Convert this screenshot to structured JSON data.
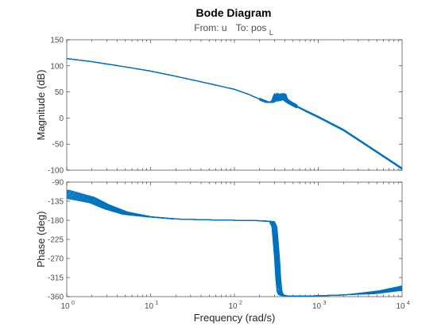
{
  "chart_data": {
    "type": "line",
    "title": "Bode Diagram",
    "subtitle": {
      "from": "From: u",
      "to_prefix": "To: pos",
      "to_subscript": "L"
    },
    "xlabel": "Frequency  (rad/s)",
    "xscale": "log",
    "xlim": [
      1,
      10000
    ],
    "x_tick_values": [
      1,
      10,
      100,
      1000,
      10000
    ],
    "x_tick_labels": [
      {
        "base": "10",
        "exp": "0"
      },
      {
        "base": "10",
        "exp": "1"
      },
      {
        "base": "10",
        "exp": "2"
      },
      {
        "base": "10",
        "exp": "3"
      },
      {
        "base": "10",
        "exp": "4"
      }
    ],
    "line_color": "#0072BD",
    "ensemble_count": 10,
    "panels": [
      {
        "id": "magnitude",
        "ylabel": "Magnitude (dB)",
        "ylim": [
          -100,
          150
        ],
        "y_ticks": [
          -100,
          -50,
          0,
          50,
          100,
          150
        ],
        "x": [
          1,
          2,
          5,
          10,
          20,
          50,
          100,
          150,
          200,
          250,
          280,
          300,
          320,
          340,
          360,
          380,
          400,
          450,
          500,
          700,
          1000,
          2000,
          5000,
          10000
        ],
        "y": [
          114,
          108,
          98,
          90,
          80,
          66,
          55,
          45,
          36,
          30,
          30,
          34,
          48,
          32,
          38,
          48,
          36,
          30,
          26,
          14,
          2,
          -23,
          -65,
          -97
        ],
        "peak_frequency_range": [
          280,
          420
        ]
      },
      {
        "id": "phase",
        "ylabel": "Phase (deg)",
        "ylim": [
          -360,
          -90
        ],
        "y_ticks": [
          -360,
          -315,
          -270,
          -225,
          -180,
          -135,
          -90
        ],
        "x": [
          1,
          2,
          3,
          5,
          10,
          20,
          50,
          100,
          200,
          280,
          300,
          320,
          340,
          360,
          400,
          500,
          1000,
          2000,
          5000,
          10000
        ],
        "y": [
          -118,
          -132,
          -148,
          -163,
          -172,
          -177,
          -179,
          -180,
          -181,
          -183,
          -195,
          -260,
          -345,
          -356,
          -358,
          -359,
          -358,
          -356,
          -350,
          -340
        ],
        "spread": 9
      }
    ]
  }
}
